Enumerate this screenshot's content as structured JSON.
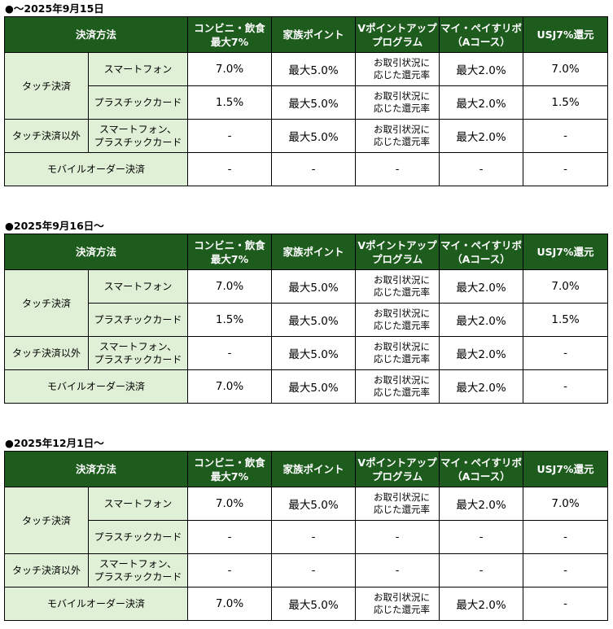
{
  "headers": {
    "method": "決済方法",
    "conv": "コンビニ・飲食\n最大7%",
    "family": "家族ポイント",
    "vpoint": "Vポイントアップ\nプログラム",
    "mypay": "マイ・ペイすリボ\n（Aコース）",
    "usj": "USJ7%還元"
  },
  "labels": {
    "touch": "タッチ決済",
    "smartphone": "スマートフォン",
    "plastic": "プラスチックカード",
    "non_touch": "タッチ決済以外",
    "both_devices": "スマートフォン、\nプラスチックカード",
    "mobile_order": "モバイルオーダー決済"
  },
  "periods": [
    {
      "title": "●～2025年9月15日",
      "rows": [
        {
          "conv": "7.0%",
          "family": "最大5.0%",
          "vpoint": "お取引状況に\n応じた還元率",
          "mypay": "最大2.0%",
          "usj": "7.0%"
        },
        {
          "conv": "1.5%",
          "family": "最大5.0%",
          "vpoint": "お取引状況に\n応じた還元率",
          "mypay": "最大2.0%",
          "usj": "1.5%"
        },
        {
          "conv": "-",
          "family": "最大5.0%",
          "vpoint": "お取引状況に\n応じた還元率",
          "mypay": "最大2.0%",
          "usj": "-"
        },
        {
          "conv": "-",
          "family": "-",
          "vpoint": "-",
          "mypay": "-",
          "usj": "-"
        }
      ]
    },
    {
      "title": "●2025年9月16日～",
      "rows": [
        {
          "conv": "7.0%",
          "family": "最大5.0%",
          "vpoint": "お取引状況に\n応じた還元率",
          "mypay": "最大2.0%",
          "usj": "7.0%"
        },
        {
          "conv": "1.5%",
          "family": "最大5.0%",
          "vpoint": "お取引状況に\n応じた還元率",
          "mypay": "最大2.0%",
          "usj": "1.5%"
        },
        {
          "conv": "-",
          "family": "最大5.0%",
          "vpoint": "お取引状況に\n応じた還元率",
          "mypay": "最大2.0%",
          "usj": "-"
        },
        {
          "conv": "7.0%",
          "family": "最大5.0%",
          "vpoint": "お取引状況に\n応じた還元率",
          "mypay": "最大2.0%",
          "usj": "-"
        }
      ]
    },
    {
      "title": "●2025年12月1日～",
      "rows": [
        {
          "conv": "7.0%",
          "family": "最大5.0%",
          "vpoint": "お取引状況に\n応じた還元率",
          "mypay": "最大2.0%",
          "usj": "7.0%"
        },
        {
          "conv": "-",
          "family": "-",
          "vpoint": "-",
          "mypay": "-",
          "usj": "-"
        },
        {
          "conv": "-",
          "family": "-",
          "vpoint": "-",
          "mypay": "-",
          "usj": "-"
        },
        {
          "conv": "7.0%",
          "family": "最大5.0%",
          "vpoint": "お取引状況に\n応じた還元率",
          "mypay": "最大2.0%",
          "usj": "-"
        }
      ]
    }
  ],
  "colors": {
    "header_bg": "#1e5c1e",
    "category_bg": "#dff0d6"
  }
}
